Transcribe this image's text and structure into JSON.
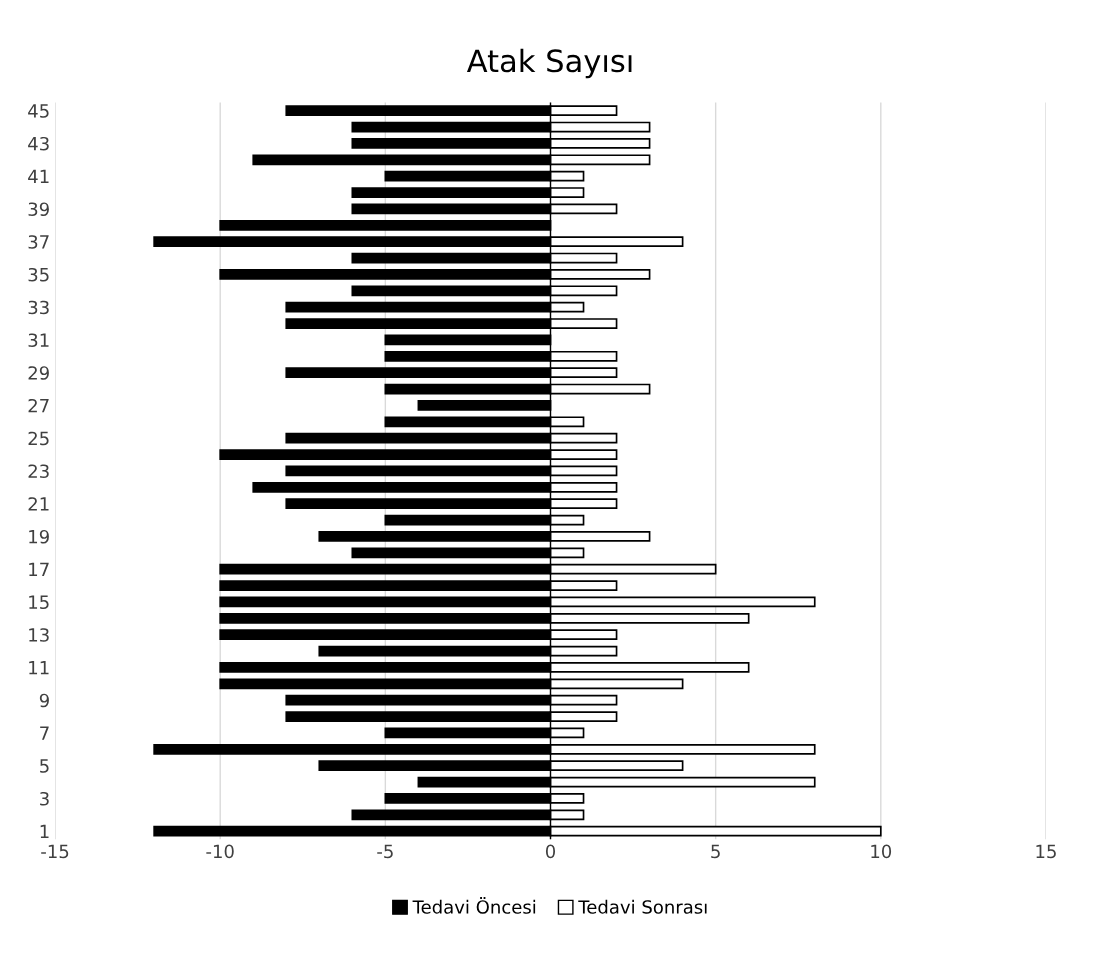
{
  "chart_data": {
    "type": "bar",
    "orientation": "horizontal",
    "title": "Atak Sayısı",
    "categories": [
      "45",
      null,
      "43",
      null,
      "41",
      null,
      "39",
      null,
      "37",
      null,
      "35",
      null,
      "33",
      null,
      "31",
      null,
      "29",
      null,
      "27",
      null,
      "25",
      null,
      "23",
      null,
      "21",
      null,
      "19",
      null,
      "17",
      null,
      "15",
      null,
      "13",
      null,
      "11",
      null,
      "9",
      null,
      "7",
      null,
      "5",
      null,
      "3",
      null,
      "1"
    ],
    "series": [
      {
        "name": "Tedavi Öncesi",
        "color": "#000000",
        "values": [
          -8,
          -6,
          -6,
          -9,
          -5,
          -6,
          -6,
          -10,
          -12,
          -6,
          -10,
          -6,
          -8,
          -8,
          -5,
          -5,
          -8,
          -5,
          -4,
          -5,
          -8,
          -10,
          -8,
          -9,
          -8,
          -5,
          -7,
          -6,
          -10,
          -10,
          -10,
          -10,
          -10,
          -7,
          -10,
          -10,
          -8,
          -8,
          -5,
          -12,
          -7,
          -4,
          -5,
          -6,
          -12
        ]
      },
      {
        "name": "Tedavi Sonrası",
        "color": "#ffffff",
        "values": [
          2,
          3,
          3,
          3,
          1,
          1,
          2,
          0,
          4,
          2,
          3,
          2,
          1,
          2,
          0,
          2,
          2,
          3,
          0,
          1,
          2,
          2,
          2,
          2,
          2,
          1,
          3,
          1,
          5,
          2,
          8,
          6,
          2,
          2,
          6,
          4,
          2,
          2,
          1,
          8,
          4,
          8,
          1,
          1,
          10
        ]
      }
    ],
    "xlim": [
      -15,
      15
    ],
    "xticks": [
      -15,
      -10,
      -5,
      0,
      5,
      10,
      15
    ],
    "grid": "x",
    "legend": "bottom",
    "stacked": true
  }
}
